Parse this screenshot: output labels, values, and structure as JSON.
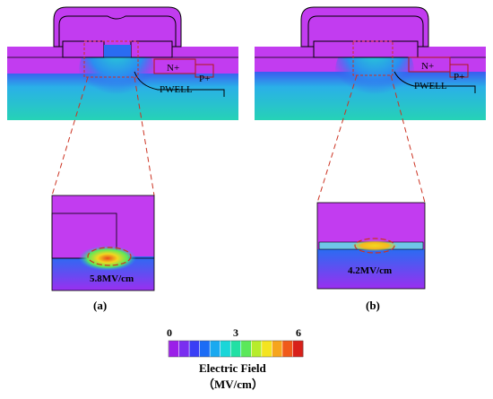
{
  "panels": [
    {
      "region_labels": {
        "n_plus": "N+",
        "p_plus": "P+",
        "pwell": "PWELL"
      },
      "zoom_annotation": "5.8MV/cm",
      "caption": "(a)"
    },
    {
      "region_labels": {
        "n_plus": "N+",
        "p_plus": "P+",
        "pwell": "PWELL"
      },
      "zoom_annotation": "4.2MV/cm",
      "caption": "(b)"
    }
  ],
  "colorbar": {
    "ticks": [
      "0",
      "3",
      "6"
    ],
    "title": "Electric Field",
    "unit": "（MV/cm）",
    "min": 0,
    "max": 6,
    "colors": [
      "#9b1fe8",
      "#7a2ef0",
      "#3a3ef5",
      "#1c6cf5",
      "#1aa9f0",
      "#1ad6d8",
      "#22e0a4",
      "#5be85a",
      "#b7ec2b",
      "#f4e420",
      "#f6a51d",
      "#f05a1a",
      "#d8201a"
    ]
  },
  "colors": {
    "field_low": "#c23cf0",
    "field_mid": "#2ab0e8",
    "field_high": "#28d0b4",
    "outline": "#000000",
    "dashed_guide": "#cc3322"
  }
}
